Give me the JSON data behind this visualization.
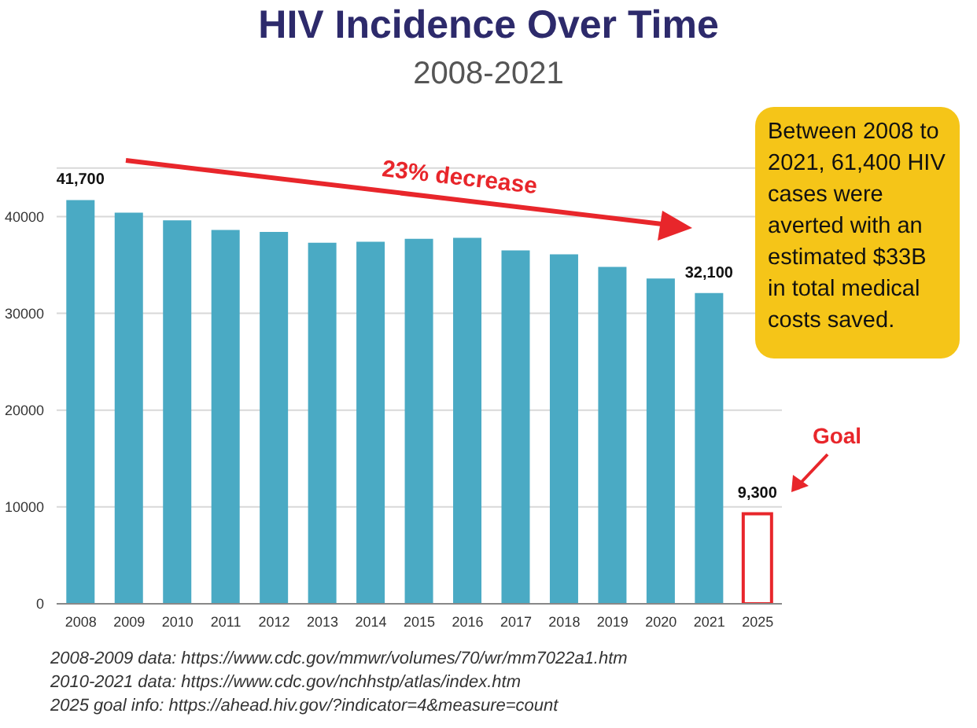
{
  "chart_data": {
    "type": "bar",
    "title": "HIV Incidence Over Time",
    "subtitle": "2008-2021",
    "categories": [
      "2008",
      "2009",
      "2010",
      "2011",
      "2012",
      "2013",
      "2014",
      "2015",
      "2016",
      "2017",
      "2018",
      "2019",
      "2020",
      "2021",
      "2025"
    ],
    "values": [
      41700,
      40400,
      39600,
      38600,
      38400,
      37300,
      37400,
      37700,
      37800,
      36500,
      36100,
      34800,
      33600,
      32100,
      9300
    ],
    "value_labels": [
      "41,700",
      null,
      null,
      null,
      null,
      null,
      null,
      null,
      null,
      null,
      null,
      null,
      null,
      "32,100",
      "9,300"
    ],
    "colors": [
      "#4aaac4",
      "#4aaac4",
      "#4aaac4",
      "#4aaac4",
      "#4aaac4",
      "#4aaac4",
      "#4aaac4",
      "#4aaac4",
      "#4aaac4",
      "#4aaac4",
      "#4aaac4",
      "#4aaac4",
      "#4aaac4",
      "#4aaac4",
      "#e8262b"
    ],
    "ylim": [
      0,
      45000
    ],
    "yticks": [
      0,
      10000,
      20000,
      30000,
      40000
    ],
    "grid": "y",
    "annotations": [
      "23% decrease",
      "Goal",
      "Between 2008 to 2021, 61,400 HIV cases were averted with an estimated $33B in total medical costs saved.",
      "2008-2009 data: https://www.cdc.gov/mmwr/volumes/70/wr/mm7022a1.htm",
      "2010-2021 data: https://www.cdc.gov/nchhstp/atlas/index.htm",
      "2025 goal info: https://ahead.hiv.gov/?indicator=4&measure=count"
    ]
  }
}
